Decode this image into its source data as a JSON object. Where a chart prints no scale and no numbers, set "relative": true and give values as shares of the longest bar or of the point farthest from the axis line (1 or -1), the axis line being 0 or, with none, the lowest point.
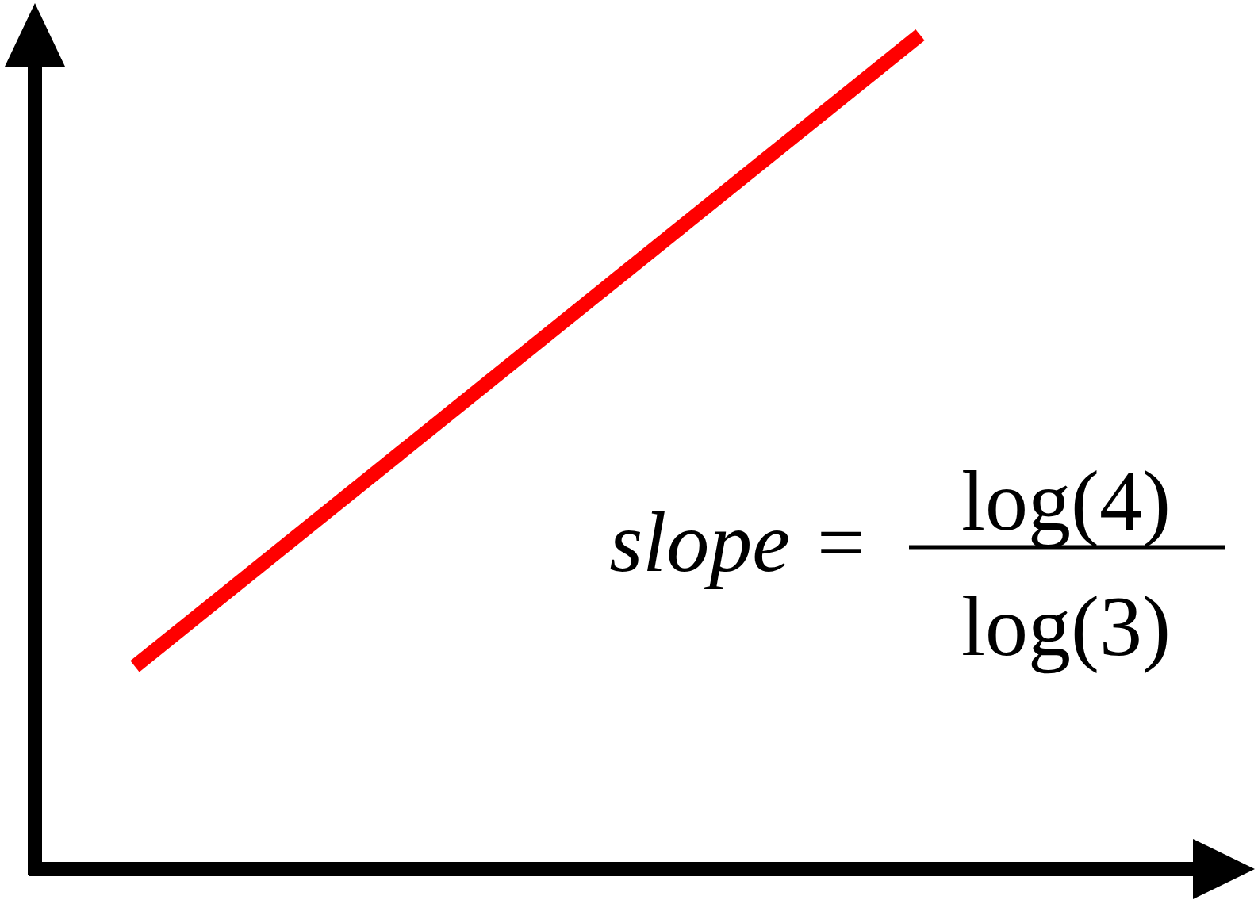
{
  "chart_data": {
    "type": "line",
    "relative": true,
    "categories": [
      null,
      null
    ],
    "series": [
      {
        "color": "#ff0000",
        "values": [
          0.243,
          1
        ]
      }
    ],
    "annotations": [
      "slope =",
      "log(4)",
      "log(3)"
    ],
    "marker": "none",
    "line_style": "solid",
    "grid": false
  }
}
